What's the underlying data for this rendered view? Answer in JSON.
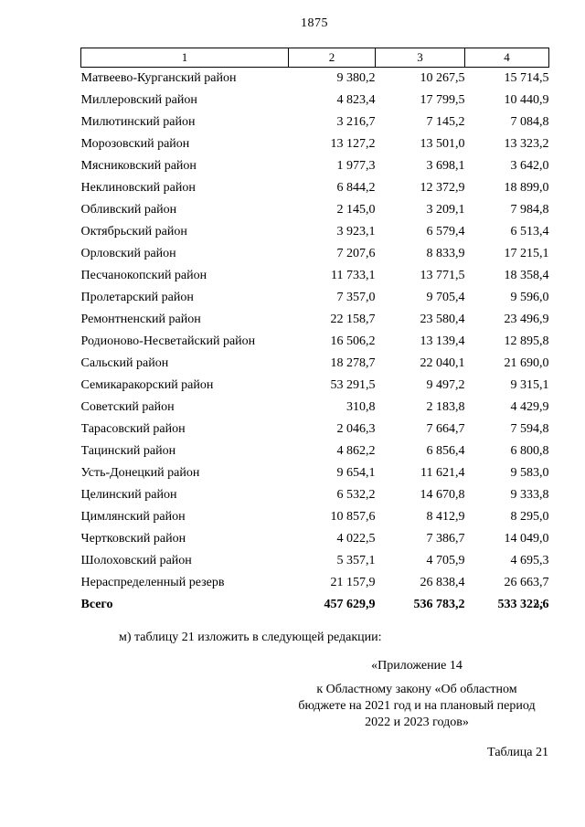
{
  "page": {
    "number": "1875"
  },
  "table": {
    "header": [
      "1",
      "2",
      "3",
      "4"
    ],
    "rows": [
      {
        "name": "Матвеево-Курганский район",
        "c2": "9 380,2",
        "c3": "10 267,5",
        "c4": "15 714,5"
      },
      {
        "name": "Миллеровский район",
        "c2": "4 823,4",
        "c3": "17 799,5",
        "c4": "10 440,9"
      },
      {
        "name": "Милютинский район",
        "c2": "3 216,7",
        "c3": "7 145,2",
        "c4": "7 084,8"
      },
      {
        "name": "Морозовский район",
        "c2": "13 127,2",
        "c3": "13 501,0",
        "c4": "13 323,2"
      },
      {
        "name": "Мясниковский район",
        "c2": "1 977,3",
        "c3": "3 698,1",
        "c4": "3 642,0"
      },
      {
        "name": "Неклиновский район",
        "c2": "6 844,2",
        "c3": "12 372,9",
        "c4": "18 899,0"
      },
      {
        "name": "Обливский район",
        "c2": "2 145,0",
        "c3": "3 209,1",
        "c4": "7 984,8"
      },
      {
        "name": "Октябрьский район",
        "c2": "3 923,1",
        "c3": "6 579,4",
        "c4": "6 513,4"
      },
      {
        "name": "Орловский район",
        "c2": "7 207,6",
        "c3": "8 833,9",
        "c4": "17 215,1"
      },
      {
        "name": "Песчанокопский район",
        "c2": "11 733,1",
        "c3": "13 771,5",
        "c4": "18 358,4"
      },
      {
        "name": "Пролетарский район",
        "c2": "7 357,0",
        "c3": "9 705,4",
        "c4": "9 596,0"
      },
      {
        "name": "Ремонтненский район",
        "c2": "22 158,7",
        "c3": "23 580,4",
        "c4": "23 496,9"
      },
      {
        "name": "Родионово-Несветайский район",
        "c2": "16 506,2",
        "c3": "13 139,4",
        "c4": "12 895,8"
      },
      {
        "name": "Сальский район",
        "c2": "18 278,7",
        "c3": "22 040,1",
        "c4": "21 690,0"
      },
      {
        "name": "Семикаракорский район",
        "c2": "53 291,5",
        "c3": "9 497,2",
        "c4": "9 315,1"
      },
      {
        "name": "Советский район",
        "c2": "310,8",
        "c3": "2 183,8",
        "c4": "4 429,9"
      },
      {
        "name": "Тарасовский район",
        "c2": "2 046,3",
        "c3": "7 664,7",
        "c4": "7 594,8"
      },
      {
        "name": "Тацинский район",
        "c2": "4 862,2",
        "c3": "6 856,4",
        "c4": "6 800,8"
      },
      {
        "name": "Усть-Донецкий район",
        "c2": "9 654,1",
        "c3": "11 621,4",
        "c4": "9 583,0"
      },
      {
        "name": "Целинский район",
        "c2": "6 532,2",
        "c3": "14 670,8",
        "c4": "9 333,8"
      },
      {
        "name": "Цимлянский район",
        "c2": "10 857,6",
        "c3": "8 412,9",
        "c4": "8 295,0"
      },
      {
        "name": "Чертковский район",
        "c2": "4 022,5",
        "c3": "7 386,7",
        "c4": "14 049,0"
      },
      {
        "name": "Шолоховский район",
        "c2": "5 357,1",
        "c3": "4 705,9",
        "c4": "4 695,3"
      },
      {
        "name": "Нераспределенный резерв",
        "c2": "21 157,9",
        "c3": "26 838,4",
        "c4": "26 663,7"
      },
      {
        "name": "Всего",
        "c2": "457 629,9",
        "c3": "536 783,2",
        "c4": "533 322,6",
        "bold": true,
        "suffix": "»;"
      }
    ]
  },
  "paragraphs": {
    "edit_note": "м) таблицу 21 изложить в следующей редакции:",
    "annex_title": "«Приложение 14",
    "law_reference": "к Областному закону «Об областном бюджете на 2021 год и на плановый период 2022 и 2023 годов»",
    "table_label": "Таблица 21"
  }
}
